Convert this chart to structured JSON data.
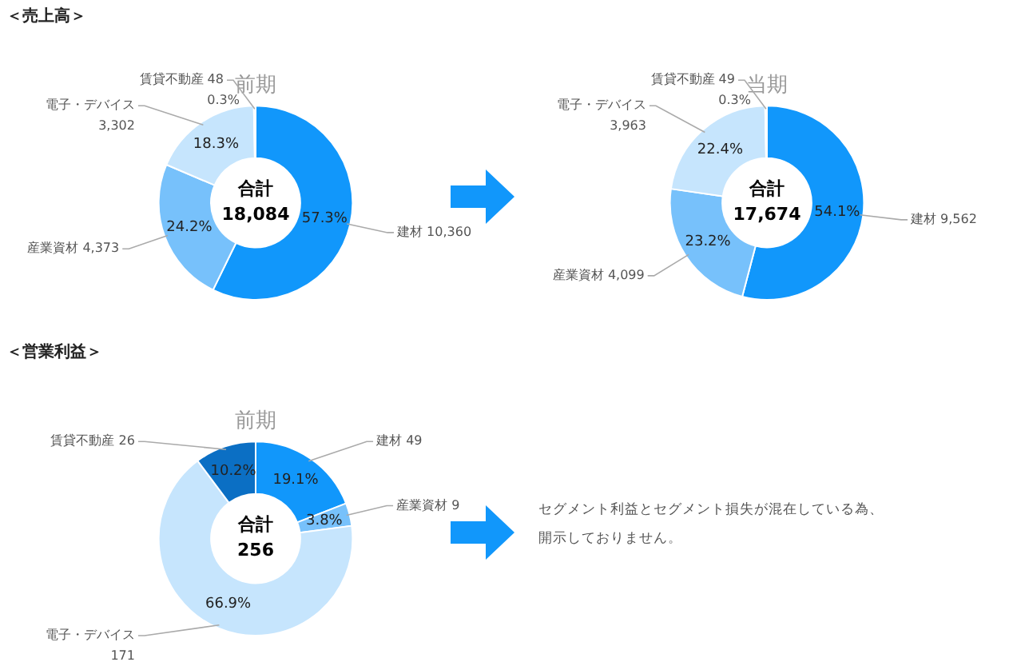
{
  "chart_data": [
    {
      "type": "donut",
      "subtitle": "＜売上高＞",
      "title": "前期",
      "categories": [
        "建材 10,360",
        "産業資材 4,373",
        "電子・デバイス\n3,302",
        "賃貸不動産 48"
      ],
      "values": [
        57.3,
        24.2,
        18.3,
        0.3
      ],
      "colors": [
        "#1197fb",
        "#77c1fb",
        "#c6e5fd",
        "#dceffe"
      ],
      "value_labels": [
        "57.3%",
        "24.2%",
        "18.3%",
        "0.3%"
      ],
      "annotations": [
        "合計",
        "18,084"
      ],
      "legend": false
    },
    {
      "type": "donut",
      "title": "当期",
      "categories": [
        "建材 9,562",
        "産業資材 4,099",
        "電子・デバイス\n3,963",
        "賃貸不動産 49"
      ],
      "values": [
        54.1,
        23.2,
        22.4,
        0.3
      ],
      "colors": [
        "#1197fb",
        "#77c1fb",
        "#c6e5fd",
        "#dceffe"
      ],
      "value_labels": [
        "54.1%",
        "23.2%",
        "22.4%",
        "0.3%"
      ],
      "annotations": [
        "合計",
        "17,674"
      ],
      "legend": false
    },
    {
      "type": "donut",
      "subtitle": "＜営業利益＞",
      "title": "前期",
      "categories": [
        "建材 49",
        "産業資材 9",
        "電子・デバイス\n171",
        "賃貸不動産 26"
      ],
      "values": [
        19.1,
        3.8,
        66.9,
        10.2
      ],
      "colors": [
        "#1197fb",
        "#77c1fb",
        "#c6e5fd",
        "#0b6fc4"
      ],
      "value_labels": [
        "19.1%",
        "3.8%",
        "66.9%",
        "10.2%"
      ],
      "annotations": [
        "合計",
        "256"
      ],
      "legend": false
    },
    {
      "type": "other",
      "annotations": [
        "セグメント利益とセグメント損失が混在している為、開示しておりません。"
      ]
    }
  ]
}
